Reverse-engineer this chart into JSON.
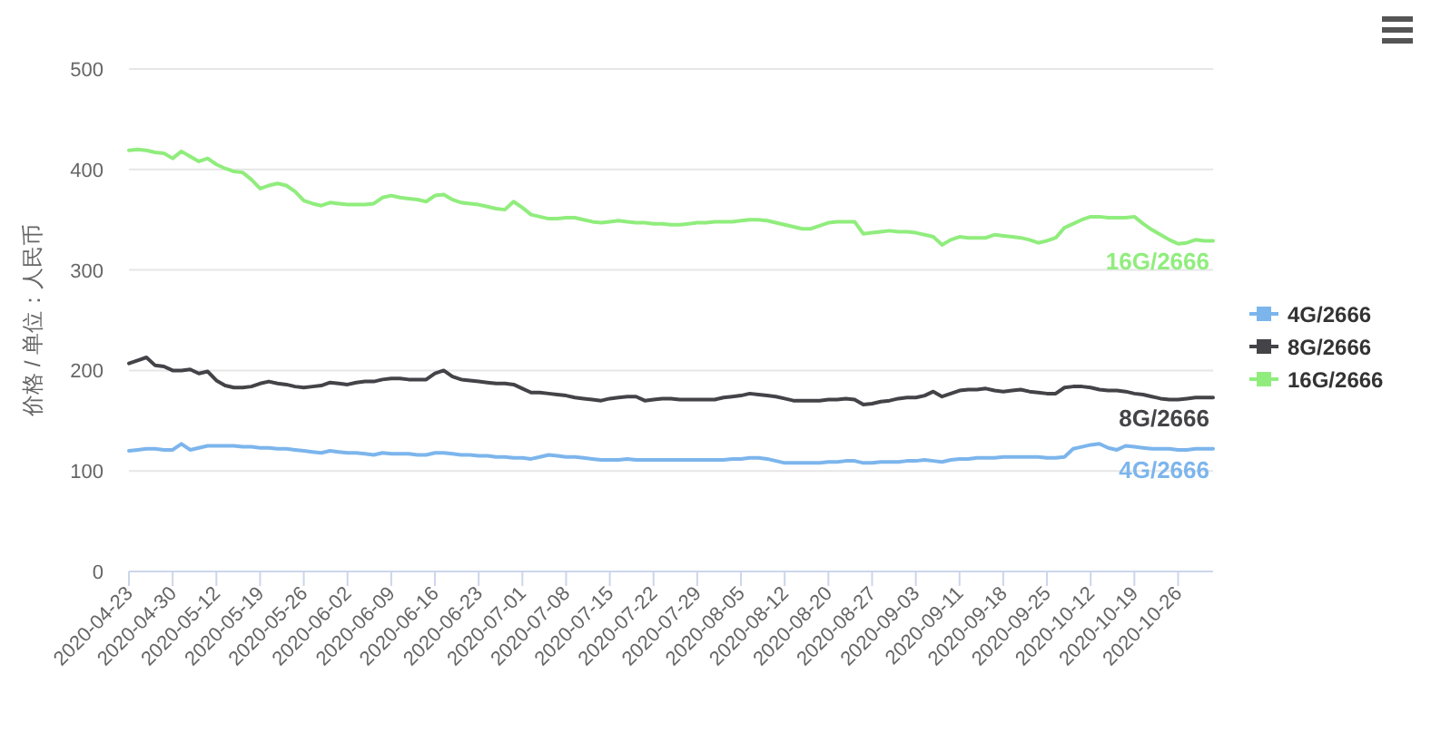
{
  "chart_data": {
    "type": "line",
    "ylabel": "价格 / 单位：人民币",
    "categories": [
      "2020-04-23",
      null,
      null,
      null,
      null,
      "2020-04-30",
      null,
      null,
      null,
      null,
      "2020-05-12",
      null,
      null,
      null,
      null,
      "2020-05-19",
      null,
      null,
      null,
      null,
      "2020-05-26",
      null,
      null,
      null,
      null,
      "2020-06-02",
      null,
      null,
      null,
      null,
      "2020-06-09",
      null,
      null,
      null,
      null,
      "2020-06-16",
      null,
      null,
      null,
      null,
      "2020-06-23",
      null,
      null,
      null,
      null,
      "2020-07-01",
      null,
      null,
      null,
      null,
      "2020-07-08",
      null,
      null,
      null,
      null,
      "2020-07-15",
      null,
      null,
      null,
      null,
      "2020-07-22",
      null,
      null,
      null,
      null,
      "2020-07-29",
      null,
      null,
      null,
      null,
      "2020-08-05",
      null,
      null,
      null,
      null,
      "2020-08-12",
      null,
      null,
      null,
      null,
      "2020-08-20",
      null,
      null,
      null,
      null,
      "2020-08-27",
      null,
      null,
      null,
      null,
      "2020-09-03",
      null,
      null,
      null,
      null,
      "2020-09-11",
      null,
      null,
      null,
      null,
      "2020-09-18",
      null,
      null,
      null,
      null,
      "2020-09-25",
      null,
      null,
      null,
      null,
      "2020-10-12",
      null,
      null,
      null,
      null,
      "2020-10-19",
      null,
      null,
      null,
      null,
      "2020-10-26",
      null,
      null,
      null,
      null
    ],
    "series": [
      {
        "name": "4G/2666",
        "color": "#7cb5ec",
        "values": [
          120,
          121,
          122,
          122,
          121,
          121,
          127,
          121,
          123,
          125,
          125,
          125,
          125,
          124,
          124,
          123,
          123,
          122,
          122,
          121,
          120,
          119,
          118,
          120,
          119,
          118,
          118,
          117,
          116,
          118,
          117,
          117,
          117,
          116,
          116,
          118,
          118,
          117,
          116,
          116,
          115,
          115,
          114,
          114,
          113,
          113,
          112,
          114,
          116,
          115,
          114,
          114,
          113,
          112,
          111,
          111,
          111,
          112,
          111,
          111,
          111,
          111,
          111,
          111,
          111,
          111,
          111,
          111,
          111,
          112,
          112,
          113,
          113,
          112,
          110,
          108,
          108,
          108,
          108,
          108,
          109,
          109,
          110,
          110,
          108,
          108,
          109,
          109,
          109,
          110,
          110,
          111,
          110,
          109,
          111,
          112,
          112,
          113,
          113,
          113,
          114,
          114,
          114,
          114,
          114,
          113,
          113,
          114,
          122,
          124,
          126,
          127,
          123,
          121,
          125,
          124,
          123,
          122,
          122,
          122,
          121,
          121,
          122,
          122,
          122
        ]
      },
      {
        "name": "8G/2666",
        "color": "#434348",
        "values": [
          207,
          210,
          213,
          205,
          204,
          200,
          200,
          201,
          197,
          199,
          190,
          185,
          183,
          183,
          184,
          187,
          189,
          187,
          186,
          184,
          183,
          184,
          185,
          188,
          187,
          186,
          188,
          189,
          189,
          191,
          192,
          192,
          191,
          191,
          191,
          197,
          200,
          194,
          191,
          190,
          189,
          188,
          187,
          187,
          186,
          182,
          178,
          178,
          177,
          176,
          175,
          173,
          172,
          171,
          170,
          172,
          173,
          174,
          174,
          170,
          171,
          172,
          172,
          171,
          171,
          171,
          171,
          171,
          173,
          174,
          175,
          177,
          176,
          175,
          174,
          172,
          170,
          170,
          170,
          170,
          171,
          171,
          172,
          171,
          166,
          167,
          169,
          170,
          172,
          173,
          173,
          175,
          179,
          174,
          177,
          180,
          181,
          181,
          182,
          180,
          179,
          180,
          181,
          179,
          178,
          177,
          177,
          183,
          184,
          184,
          183,
          181,
          180,
          180,
          179,
          177,
          176,
          174,
          172,
          171,
          171,
          172,
          173,
          173,
          173
        ]
      },
      {
        "name": "16G/2666",
        "color": "#90ed7d",
        "values": [
          419,
          420,
          419,
          417,
          416,
          411,
          418,
          413,
          408,
          411,
          405,
          401,
          398,
          397,
          390,
          381,
          384,
          386,
          384,
          378,
          369,
          366,
          364,
          367,
          366,
          365,
          365,
          365,
          366,
          372,
          374,
          372,
          371,
          370,
          368,
          374,
          375,
          370,
          367,
          366,
          365,
          363,
          361,
          360,
          368,
          362,
          355,
          353,
          351,
          351,
          352,
          352,
          350,
          348,
          347,
          348,
          349,
          348,
          347,
          347,
          346,
          346,
          345,
          345,
          346,
          347,
          347,
          348,
          348,
          348,
          349,
          350,
          350,
          349,
          347,
          345,
          343,
          341,
          341,
          344,
          347,
          348,
          348,
          348,
          336,
          337,
          338,
          339,
          338,
          338,
          337,
          335,
          333,
          325,
          330,
          333,
          332,
          332,
          332,
          335,
          334,
          333,
          332,
          330,
          327,
          329,
          332,
          342,
          346,
          350,
          353,
          353,
          352,
          352,
          352,
          353,
          346,
          340,
          335,
          330,
          326,
          327,
          330,
          329,
          329
        ]
      }
    ],
    "ylim": [
      0,
      500
    ],
    "yticks": [
      0,
      100,
      200,
      300,
      400,
      500
    ],
    "grid": "y",
    "legend": "right"
  }
}
